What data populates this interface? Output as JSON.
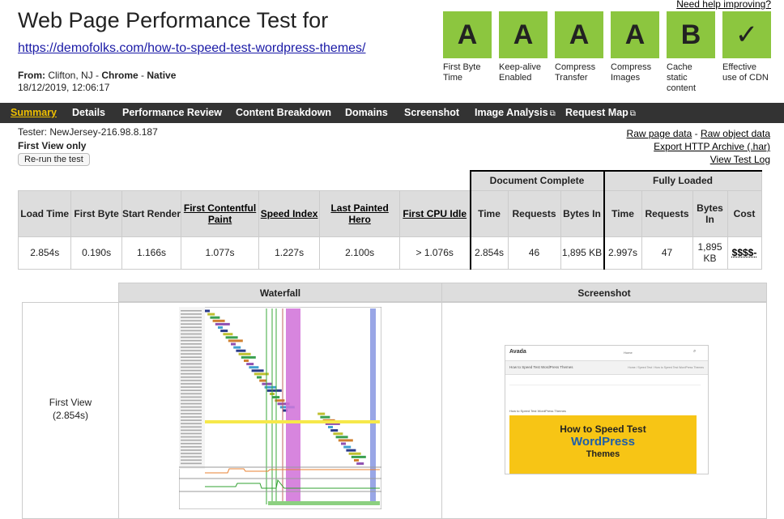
{
  "header": {
    "title": "Web Page Performance Test for",
    "url": "https://demofolks.com/how-to-speed-test-wordpress-themes/",
    "from_label": "From:",
    "location": "Clifton, NJ",
    "sep1": " - ",
    "browser": "Chrome",
    "sep2": " - ",
    "connection": "Native",
    "datetime": "18/12/2019, 12:06:17",
    "help_link": "Need help improving?"
  },
  "grades": [
    {
      "grade": "A",
      "label": "First Byte Time"
    },
    {
      "grade": "A",
      "label": "Keep-alive Enabled"
    },
    {
      "grade": "A",
      "label": "Compress Transfer"
    },
    {
      "grade": "A",
      "label": "Compress Images"
    },
    {
      "grade": "B",
      "label": "Cache static content"
    },
    {
      "grade": "✓",
      "label": "Effective use of CDN"
    }
  ],
  "nav": {
    "items": [
      {
        "label": "Summary"
      },
      {
        "label": "Details"
      },
      {
        "label": "Performance Review"
      },
      {
        "label": "Content Breakdown"
      },
      {
        "label": "Domains"
      },
      {
        "label": "Screenshot"
      },
      {
        "label": "Image Analysis"
      },
      {
        "label": "Request Map"
      }
    ],
    "external_icon": "⧉"
  },
  "test_info": {
    "tester": "Tester: NewJersey-216.98.8.187",
    "view": "First View only",
    "rerun": "Re-run the test"
  },
  "right_links": {
    "raw_page": "Raw page data",
    "dash": " - ",
    "raw_object": "Raw object data",
    "export_har": "Export HTTP Archive (.har)",
    "view_log": "View Test Log"
  },
  "results": {
    "group_document": "Document Complete",
    "group_fully": "Fully Loaded",
    "headers": {
      "load_time": "Load Time",
      "first_byte": "First Byte",
      "start_render": "Start Render",
      "fcp": "First Contentful Paint",
      "speed_index": "Speed Index",
      "lph": "Last Painted Hero",
      "cpu_idle": "First CPU Idle",
      "dc_time": "Time",
      "dc_requests": "Requests",
      "dc_bytes": "Bytes In",
      "fl_time": "Time",
      "fl_requests": "Requests",
      "fl_bytes": "Bytes In",
      "cost": "Cost"
    },
    "values": {
      "load_time": "2.854s",
      "first_byte": "0.190s",
      "start_render": "1.166s",
      "fcp": "1.077s",
      "speed_index": "1.227s",
      "lph": "2.100s",
      "cpu_idle": "> 1.076s",
      "dc_time": "2.854s",
      "dc_requests": "46",
      "dc_bytes": "1,895 KB",
      "fl_time": "2.997s",
      "fl_requests": "47",
      "fl_bytes": "1,895 KB",
      "cost": "$$$$-"
    }
  },
  "waterfall_section": {
    "waterfall_header": "Waterfall",
    "screenshot_header": "Screenshot",
    "row_label": "First View",
    "row_time": "(2.854s)"
  },
  "screenshot_preview": {
    "logo": "Avada",
    "nav_text": "Home",
    "page_heading": "How to Speed Test WordPress Themes",
    "breadcrumb": "Home / Speed Test / How to Speed Test WordPress Themes",
    "post_title": "How to Speed Test WordPress Themes",
    "hero_line1": "How to Speed Test",
    "hero_line2": "WordPress",
    "hero_line3": "Themes"
  },
  "colors": {
    "grade_green": "#8cc63f",
    "nav_bg": "#333333",
    "nav_active": "#f0c000",
    "hero_yellow": "#f7c515",
    "hero_blue": "#1f5fa8"
  }
}
